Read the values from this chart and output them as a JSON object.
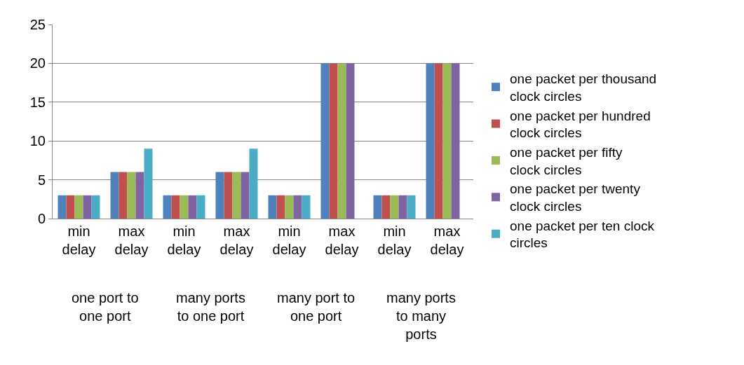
{
  "chart_data": {
    "type": "bar",
    "categories": [
      "min delay",
      "max delay",
      "min delay",
      "max delay",
      "min delay",
      "max delay",
      "min delay",
      "max delay"
    ],
    "series": [
      {
        "name": "one packet per thousand clock circles",
        "color": "#4f81bd",
        "values": [
          3,
          6,
          3,
          6,
          3,
          20,
          3,
          20
        ]
      },
      {
        "name": "one packet per hundred clock circles",
        "color": "#c0504d",
        "values": [
          3,
          6,
          3,
          6,
          3,
          20,
          3,
          20
        ]
      },
      {
        "name": "one packet per fifty clock circles",
        "color": "#9bbb59",
        "values": [
          3,
          6,
          3,
          6,
          3,
          20,
          3,
          20
        ]
      },
      {
        "name": "one packet per twenty clock circles",
        "color": "#8064a2",
        "values": [
          3,
          6,
          3,
          6,
          3,
          20,
          3,
          20
        ]
      },
      {
        "name": "one packet per ten clock circles",
        "color": "#4bacc6",
        "values": [
          3,
          9,
          3,
          9,
          3,
          null,
          3,
          null
        ]
      }
    ],
    "annotations": [
      "one port to one port",
      "many ports to one port",
      "many port to one port",
      "many ports to many ports"
    ],
    "ylim": [
      0,
      25
    ],
    "yticks": [
      0,
      5,
      10,
      15,
      20,
      25
    ],
    "grid": "y",
    "legend": "right"
  }
}
